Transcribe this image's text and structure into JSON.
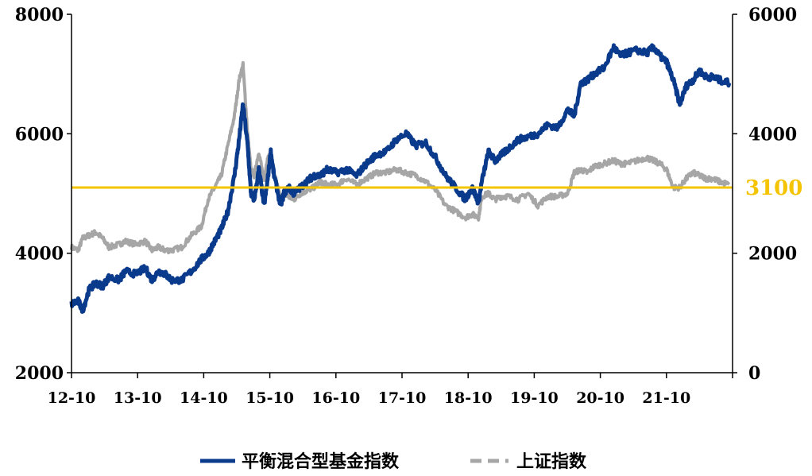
{
  "chart_data": {
    "type": "line",
    "title": "",
    "x_tick_labels": [
      "12-10",
      "13-10",
      "14-10",
      "15-10",
      "16-10",
      "17-10",
      "18-10",
      "19-10",
      "20-10",
      "21-10"
    ],
    "y_left": {
      "lim": [
        2000,
        8000
      ],
      "ticks": [
        2000,
        4000,
        6000,
        8000
      ],
      "tick_labels": [
        "2000",
        "4000",
        "6000",
        "8000"
      ]
    },
    "y_right": {
      "lim": [
        0,
        6000
      ],
      "ticks": [
        0,
        2000,
        4000,
        6000
      ],
      "tick_labels": [
        "0",
        "2000",
        "4000",
        "6000"
      ]
    },
    "reference_line": {
      "axis": "right",
      "value": 3100,
      "label": "3100",
      "color": "#F5C400"
    },
    "series": [
      {
        "name": "平衡混合型基金指数",
        "axis": "left",
        "color": "#0A3A8C",
        "style": "solid",
        "x": [
          2012.78,
          2012.88,
          2012.95,
          2013.05,
          2013.15,
          2013.25,
          2013.35,
          2013.5,
          2013.6,
          2013.75,
          2013.9,
          2014.0,
          2014.1,
          2014.2,
          2014.3,
          2014.45,
          2014.6,
          2014.75,
          2014.85,
          2014.95,
          2015.05,
          2015.15,
          2015.25,
          2015.32,
          2015.38,
          2015.45,
          2015.5,
          2015.55,
          2015.62,
          2015.7,
          2015.75,
          2015.8,
          2015.85,
          2015.95,
          2016.0,
          2016.07,
          2016.15,
          2016.25,
          2016.35,
          2016.45,
          2016.55,
          2016.65,
          2016.8,
          2016.95,
          2017.1,
          2017.25,
          2017.4,
          2017.55,
          2017.7,
          2017.85,
          2018.0,
          2018.15,
          2018.3,
          2018.45,
          2018.6,
          2018.75,
          2018.85,
          2018.95,
          2019.0,
          2019.1,
          2019.2,
          2019.3,
          2019.4,
          2019.55,
          2019.7,
          2019.85,
          2020.0,
          2020.15,
          2020.3,
          2020.4,
          2020.5,
          2020.6,
          2020.7,
          2020.85,
          2021.0,
          2021.1,
          2021.2,
          2021.35,
          2021.5,
          2021.6,
          2021.7,
          2021.8,
          2021.9,
          2022.0,
          2022.1,
          2022.2,
          2022.3,
          2022.4,
          2022.5,
          2022.6,
          2022.75
        ],
        "values": [
          3150,
          3200,
          3050,
          3400,
          3500,
          3450,
          3600,
          3550,
          3700,
          3650,
          3750,
          3550,
          3700,
          3650,
          3550,
          3550,
          3700,
          3900,
          4000,
          4200,
          4400,
          4700,
          5300,
          5900,
          6500,
          5800,
          5000,
          4900,
          5400,
          4800,
          5200,
          5700,
          5300,
          4800,
          5000,
          5100,
          5000,
          5100,
          5200,
          5300,
          5300,
          5400,
          5350,
          5400,
          5300,
          5500,
          5650,
          5700,
          5900,
          6000,
          5800,
          5850,
          5600,
          5300,
          5100,
          4900,
          5100,
          4850,
          5200,
          5700,
          5550,
          5650,
          5750,
          5900,
          5950,
          6000,
          6150,
          6100,
          6400,
          6300,
          6850,
          6900,
          7000,
          7100,
          7450,
          7300,
          7350,
          7400,
          7350,
          7450,
          7300,
          7200,
          6900,
          6500,
          6800,
          6900,
          7050,
          6950,
          6950,
          6900,
          6850
        ]
      },
      {
        "name": "上证指数",
        "axis": "right",
        "color": "#A6A6A6",
        "style": "dashed",
        "x": [
          2012.78,
          2012.88,
          2012.95,
          2013.05,
          2013.15,
          2013.25,
          2013.35,
          2013.5,
          2013.6,
          2013.75,
          2013.9,
          2014.0,
          2014.1,
          2014.2,
          2014.3,
          2014.45,
          2014.6,
          2014.75,
          2014.85,
          2014.95,
          2015.05,
          2015.15,
          2015.25,
          2015.32,
          2015.38,
          2015.45,
          2015.5,
          2015.55,
          2015.62,
          2015.7,
          2015.75,
          2015.8,
          2015.85,
          2015.95,
          2016.0,
          2016.07,
          2016.15,
          2016.25,
          2016.35,
          2016.45,
          2016.55,
          2016.65,
          2016.8,
          2016.95,
          2017.1,
          2017.25,
          2017.4,
          2017.55,
          2017.7,
          2017.85,
          2018.0,
          2018.15,
          2018.3,
          2018.45,
          2018.6,
          2018.75,
          2018.85,
          2018.95,
          2019.0,
          2019.1,
          2019.2,
          2019.3,
          2019.4,
          2019.55,
          2019.7,
          2019.85,
          2020.0,
          2020.15,
          2020.3,
          2020.4,
          2020.5,
          2020.6,
          2020.7,
          2020.85,
          2021.0,
          2021.1,
          2021.2,
          2021.35,
          2021.5,
          2021.6,
          2021.7,
          2021.8,
          2021.9,
          2022.0,
          2022.1,
          2022.2,
          2022.3,
          2022.4,
          2022.5,
          2022.6,
          2022.75
        ],
        "values": [
          2100,
          2050,
          2250,
          2300,
          2350,
          2250,
          2100,
          2150,
          2200,
          2150,
          2200,
          2050,
          2100,
          2050,
          2050,
          2100,
          2300,
          2450,
          2900,
          3100,
          3300,
          3800,
          4300,
          4900,
          5150,
          4000,
          3400,
          3300,
          3700,
          3200,
          3600,
          3650,
          3350,
          2900,
          3000,
          2950,
          2900,
          3000,
          3050,
          3100,
          3200,
          3150,
          3150,
          3250,
          3150,
          3250,
          3350,
          3350,
          3400,
          3350,
          3300,
          3200,
          3050,
          2800,
          2700,
          2600,
          2650,
          2600,
          2950,
          3000,
          2900,
          2950,
          2950,
          2900,
          3000,
          2800,
          2950,
          2950,
          3000,
          3350,
          3400,
          3350,
          3450,
          3500,
          3550,
          3500,
          3500,
          3550,
          3600,
          3550,
          3500,
          3400,
          3100,
          3100,
          3250,
          3350,
          3300,
          3250,
          3250,
          3200,
          3150
        ]
      }
    ],
    "legend": {
      "placement": "bottom-center"
    },
    "grid": false
  }
}
